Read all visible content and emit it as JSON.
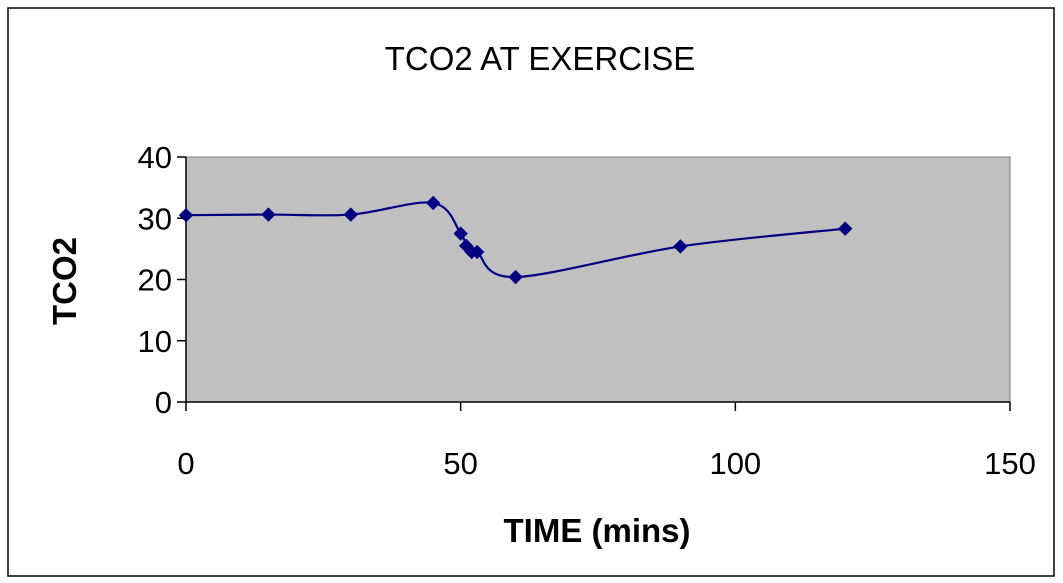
{
  "chart_data": {
    "type": "line",
    "title": "TCO2 AT EXERCISE",
    "xlabel": "TIME (mins)",
    "ylabel": "TCO2",
    "xlim": [
      0,
      150
    ],
    "ylim": [
      0,
      40
    ],
    "xticks": [
      0,
      50,
      100,
      150
    ],
    "yticks": [
      0,
      10,
      20,
      30,
      40
    ],
    "grid": false,
    "legend": "none",
    "colors": {
      "plot_background": "#c0c0c0",
      "series": "#000080",
      "axis": "#000000"
    },
    "series": [
      {
        "marker": "diamond",
        "smooth": true,
        "x": [
          0,
          15,
          30,
          45,
          50,
          51,
          52,
          53,
          60,
          90,
          120
        ],
        "y": [
          30.5,
          30.6,
          30.6,
          32.5,
          27.5,
          25.5,
          24.5,
          24.5,
          20.4,
          25.4,
          28.3
        ]
      }
    ]
  }
}
